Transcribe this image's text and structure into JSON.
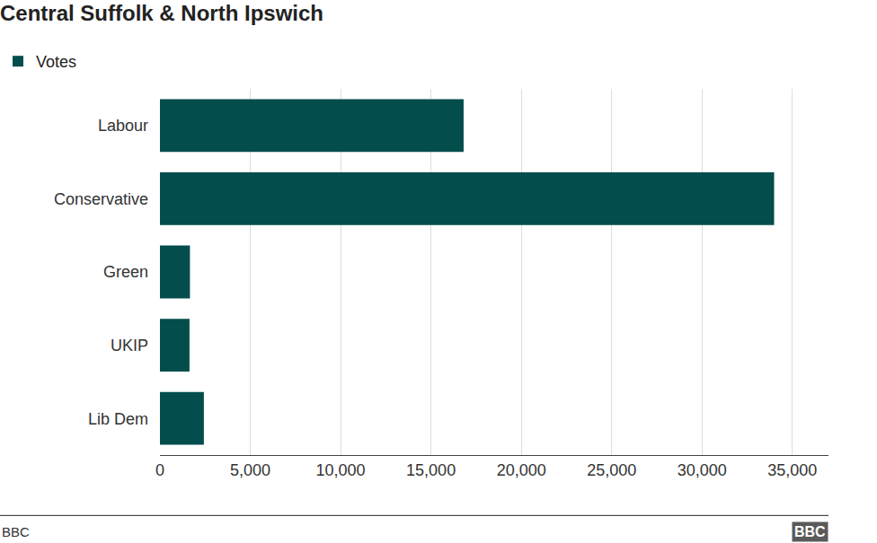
{
  "chart_data": {
    "type": "bar",
    "orientation": "horizontal",
    "title": "Central Suffolk & North Ipswich",
    "categories": [
      "Labour",
      "Conservative",
      "Green",
      "UKIP",
      "Lib Dem"
    ],
    "series": [
      {
        "name": "Votes",
        "color": "#034d4d",
        "values": [
          16807,
          33992,
          1659,
          1635,
          2431
        ]
      }
    ],
    "xlim": [
      0,
      37000
    ],
    "xticks": [
      0,
      {
        "value": 5000,
        "label": "5,000"
      },
      {
        "value": 10000,
        "label": "10,000"
      },
      {
        "value": 15000,
        "label": "15,000"
      },
      {
        "value": 20000,
        "label": "20,000"
      },
      {
        "value": 25000,
        "label": "25,000"
      },
      {
        "value": 30000,
        "label": "30,000"
      },
      {
        "value": 35000,
        "label": "35,000"
      }
    ],
    "grid": true,
    "legend": "top-left",
    "source": "BBC",
    "logo": "BBC"
  }
}
